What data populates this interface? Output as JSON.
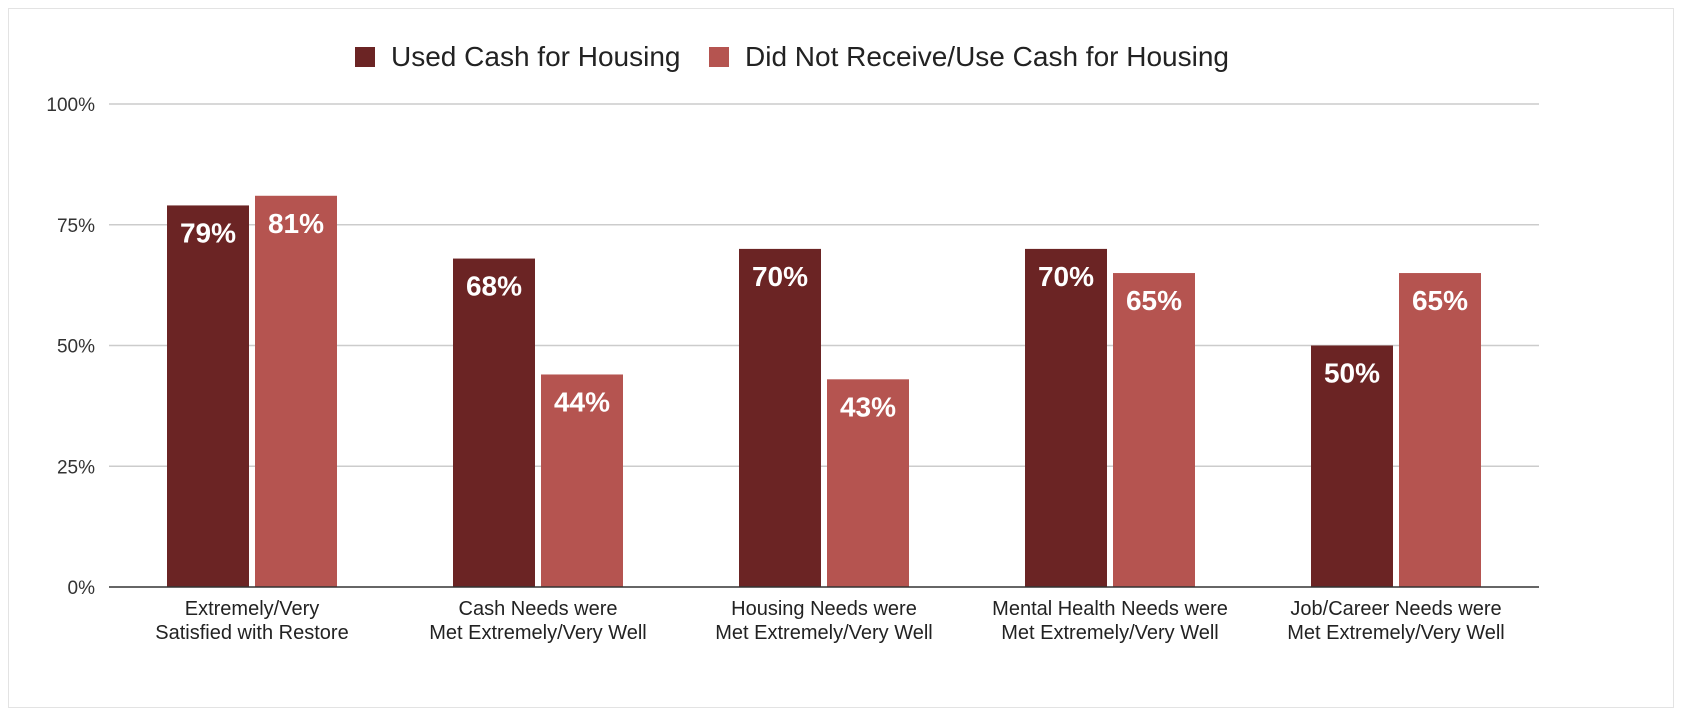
{
  "chart_data": {
    "type": "bar",
    "title": "",
    "xlabel": "",
    "ylabel": "",
    "ylim": [
      0,
      100
    ],
    "y_ticks": [
      "0%",
      "25%",
      "50%",
      "75%",
      "100%"
    ],
    "y_tick_values": [
      0,
      25,
      50,
      75,
      100
    ],
    "grid": true,
    "legend_position": "top-center",
    "categories": [
      [
        "Extremely/Very",
        "Satisfied with Restore"
      ],
      [
        "Cash Needs were",
        "Met Extremely/Very Well"
      ],
      [
        "Housing Needs were",
        "Met Extremely/Very Well"
      ],
      [
        "Mental Health Needs were",
        "Met Extremely/Very Well"
      ],
      [
        "Job/Career Needs were",
        "Met Extremely/Very Well"
      ]
    ],
    "series": [
      {
        "name": "Used Cash for Housing",
        "color": "#6b2424",
        "values": [
          79,
          68,
          70,
          70,
          50
        ],
        "labels": [
          "79%",
          "68%",
          "70%",
          "70%",
          "50%"
        ]
      },
      {
        "name": "Did Not Receive/Use Cash for Housing",
        "color": "#b55450",
        "values": [
          81,
          44,
          43,
          65,
          65
        ],
        "labels": [
          "81%",
          "44%",
          "43%",
          "65%",
          "65%"
        ]
      }
    ]
  }
}
